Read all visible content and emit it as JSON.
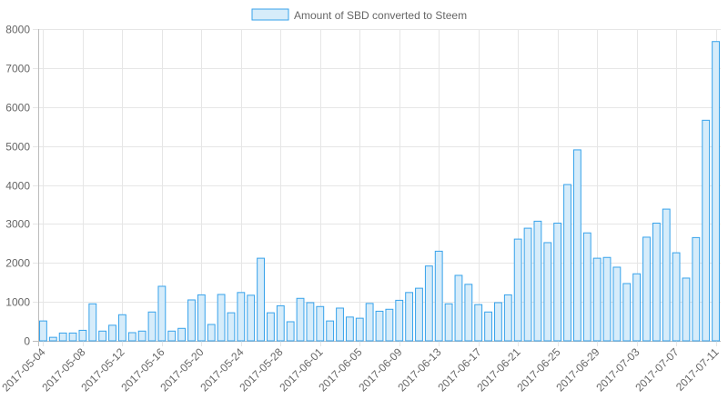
{
  "chart_data": {
    "type": "bar",
    "legend": {
      "position": "top-center"
    },
    "series": [
      {
        "name": "Amount of SBD converted to Steem",
        "fill_color": "#d6ecfa",
        "border_color": "#36a2eb",
        "values": [
          510,
          90,
          200,
          200,
          270,
          950,
          250,
          400,
          670,
          210,
          250,
          740,
          1400,
          250,
          320,
          1050,
          1180,
          420,
          1190,
          720,
          1240,
          1170,
          2120,
          720,
          900,
          490,
          1090,
          980,
          880,
          510,
          840,
          610,
          580,
          960,
          760,
          810,
          1040,
          1240,
          1350,
          1920,
          2300,
          950,
          1680,
          1450,
          930,
          740,
          980,
          1180,
          2610,
          2890,
          3070,
          2520,
          3020,
          4010,
          4900,
          2770,
          2120,
          2140,
          1890,
          1470,
          1720,
          2660,
          3020,
          3380,
          2260,
          1610,
          2650,
          5660,
          7680
        ]
      }
    ],
    "x_tick_labels": [
      "2017-05-04",
      "2017-05-08",
      "2017-05-12",
      "2017-05-16",
      "2017-05-20",
      "2017-05-24",
      "2017-05-28",
      "2017-06-01",
      "2017-06-05",
      "2017-06-09",
      "2017-06-13",
      "2017-06-17",
      "2017-06-21",
      "2017-06-25",
      "2017-06-29",
      "2017-07-03",
      "2017-07-07",
      "2017-07-11"
    ],
    "x_tick_every": 4,
    "y_ticks": [
      "0",
      "1000",
      "2000",
      "3000",
      "4000",
      "5000",
      "6000",
      "7000",
      "8000"
    ],
    "ylim": [
      0,
      8000
    ],
    "grid": true
  }
}
